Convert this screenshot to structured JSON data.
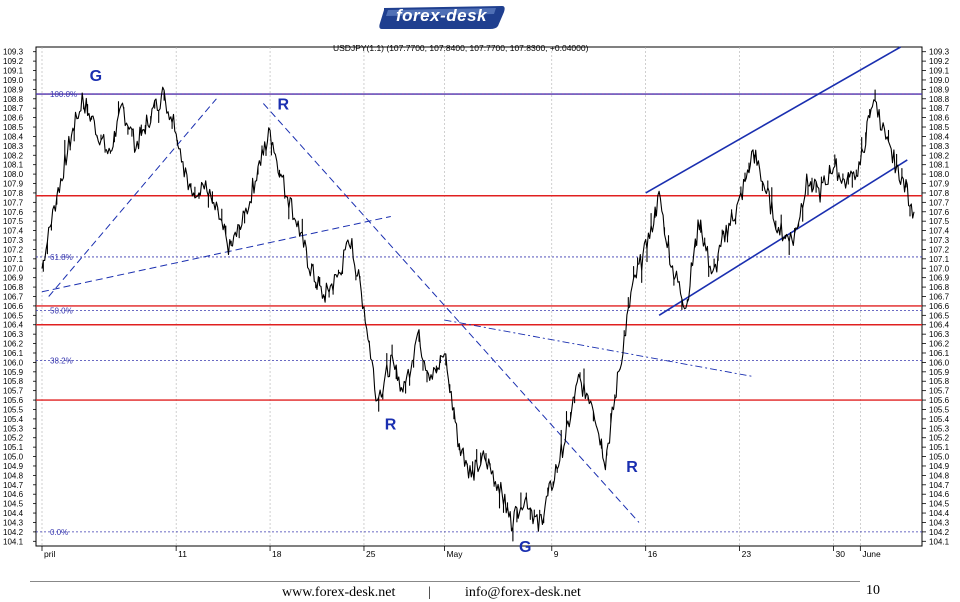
{
  "brand": {
    "logo_text": "forex-desk",
    "logo_color": "#1f3f8f"
  },
  "footer": {
    "website": "www.forex-desk.net",
    "separator": "|",
    "email": "info@forex-desk.net",
    "page_number": "10"
  },
  "chart_data": {
    "type": "line",
    "title": "USDJPY(1:1) (107.7700, 107.8400, 107.7700, 107.8300, +0.04000)",
    "ylim": [
      104.1,
      109.3
    ],
    "y_ticks": [
      "109.3",
      "109.2",
      "109.1",
      "109.0",
      "108.9",
      "108.8",
      "108.7",
      "108.6",
      "108.5",
      "108.4",
      "108.3",
      "108.2",
      "108.1",
      "108.0",
      "107.9",
      "107.8",
      "107.7",
      "107.6",
      "107.5",
      "107.4",
      "107.3",
      "107.2",
      "107.1",
      "107.0",
      "106.9",
      "106.8",
      "106.7",
      "106.6",
      "106.5",
      "106.4",
      "106.3",
      "106.2",
      "106.1",
      "106.0",
      "105.9",
      "105.8",
      "105.7",
      "105.6",
      "105.5",
      "105.4",
      "105.3",
      "105.2",
      "105.1",
      "105.0",
      "104.9",
      "104.8",
      "104.7",
      "104.6",
      "104.5",
      "104.4",
      "104.3",
      "104.2",
      "104.1"
    ],
    "x_ticks": [
      {
        "label": "pril",
        "day": 0
      },
      {
        "label": "11",
        "day": 10
      },
      {
        "label": "18",
        "day": 17
      },
      {
        "label": "25",
        "day": 24
      },
      {
        "label": "May",
        "day": 30
      },
      {
        "label": "9",
        "day": 38
      },
      {
        "label": "16",
        "day": 45
      },
      {
        "label": "23",
        "day": 52
      },
      {
        "label": "30",
        "day": 59
      },
      {
        "label": "June",
        "day": 61
      }
    ],
    "price_path": [
      [
        0,
        107.0
      ],
      [
        1,
        107.7
      ],
      [
        2,
        108.3
      ],
      [
        3,
        108.8
      ],
      [
        4,
        108.5
      ],
      [
        5,
        108.2
      ],
      [
        6,
        108.7
      ],
      [
        7,
        108.3
      ],
      [
        8,
        108.6
      ],
      [
        9,
        108.85
      ],
      [
        10,
        108.5
      ],
      [
        11,
        107.8
      ],
      [
        12,
        107.9
      ],
      [
        13,
        107.6
      ],
      [
        14,
        107.2
      ],
      [
        15,
        107.5
      ],
      [
        16,
        108.0
      ],
      [
        17,
        108.45
      ],
      [
        18,
        107.9
      ],
      [
        19,
        107.5
      ],
      [
        20,
        107.0
      ],
      [
        21,
        106.7
      ],
      [
        22,
        106.9
      ],
      [
        23,
        107.3
      ],
      [
        24,
        106.6
      ],
      [
        25,
        105.6
      ],
      [
        26,
        106.0
      ],
      [
        27,
        105.7
      ],
      [
        28,
        106.3
      ],
      [
        29,
        105.8
      ],
      [
        30,
        106.1
      ],
      [
        31,
        105.2
      ],
      [
        32,
        104.8
      ],
      [
        33,
        105.0
      ],
      [
        34,
        104.7
      ],
      [
        35,
        104.3
      ],
      [
        36,
        104.6
      ],
      [
        37,
        104.25
      ],
      [
        38,
        104.7
      ],
      [
        39,
        105.2
      ],
      [
        40,
        105.8
      ],
      [
        41,
        105.6
      ],
      [
        42,
        104.95
      ],
      [
        43,
        105.9
      ],
      [
        44,
        106.8
      ],
      [
        45,
        107.2
      ],
      [
        46,
        107.75
      ],
      [
        47,
        107.0
      ],
      [
        48,
        106.6
      ],
      [
        49,
        107.5
      ],
      [
        50,
        106.9
      ],
      [
        51,
        107.4
      ],
      [
        52,
        107.7
      ],
      [
        53,
        108.25
      ],
      [
        54,
        107.8
      ],
      [
        55,
        107.4
      ],
      [
        56,
        107.3
      ],
      [
        57,
        107.9
      ],
      [
        58,
        107.8
      ],
      [
        59,
        108.1
      ],
      [
        60,
        107.9
      ],
      [
        61,
        108.1
      ],
      [
        62,
        108.85
      ],
      [
        63,
        108.3
      ],
      [
        64,
        108.0
      ],
      [
        65,
        107.6
      ]
    ],
    "horizontal_lines": [
      {
        "value": 108.85,
        "color": "#5a2aa6"
      },
      {
        "value": 107.77,
        "color": "#e02020"
      },
      {
        "value": 106.6,
        "color": "#e02020"
      },
      {
        "value": 106.4,
        "color": "#e02020"
      },
      {
        "value": 105.6,
        "color": "#e02020"
      }
    ],
    "fibonacci": [
      {
        "label": "100.0%",
        "value": 108.85
      },
      {
        "label": "61.8%",
        "value": 107.12
      },
      {
        "label": "50.0%",
        "value": 106.55
      },
      {
        "label": "38.2%",
        "value": 106.02
      },
      {
        "label": "0.0%",
        "value": 104.2
      }
    ],
    "annotations": [
      {
        "label": "G",
        "day": 4,
        "value": 109.05
      },
      {
        "label": "R",
        "day": 18,
        "value": 108.75
      },
      {
        "label": "R",
        "day": 26,
        "value": 105.35
      },
      {
        "label": "G",
        "day": 36,
        "value": 104.05
      },
      {
        "label": "R",
        "day": 44,
        "value": 104.9
      }
    ],
    "colors": {
      "price": "#000000",
      "trend": "#1a2fb0",
      "fib": "#3a3ab0",
      "annotation": "#1a2fb0",
      "support": "#e02020",
      "top": "#5a2aa6"
    }
  }
}
